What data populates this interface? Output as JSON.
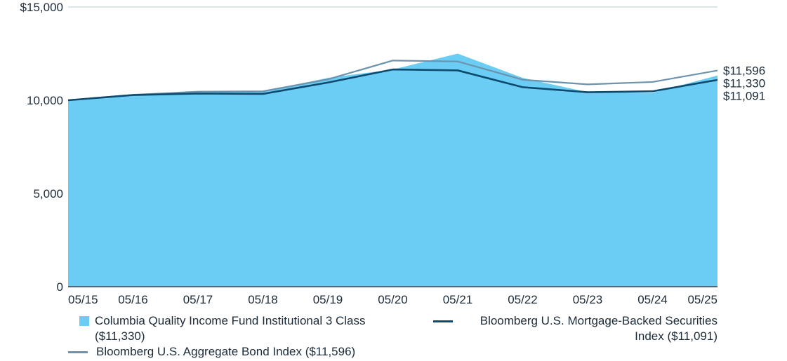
{
  "chart_data": {
    "type": "area",
    "title": "",
    "xlabel": "",
    "ylabel": "",
    "ylim": [
      0,
      15000
    ],
    "yticks": [
      0,
      5000,
      10000,
      15000
    ],
    "ytick_labels": [
      "0",
      "5,000",
      "10,000",
      "$15,000"
    ],
    "categories": [
      "05/15",
      "05/16",
      "05/17",
      "05/18",
      "05/19",
      "05/20",
      "05/21",
      "05/22",
      "05/23",
      "05/24",
      "05/25"
    ],
    "grid": true,
    "series": [
      {
        "name": "Columbia Quality Income Fund Institutional 3 Class ($11,330)",
        "kind": "area",
        "color": "#6bcdf4",
        "end_label": "$11,330",
        "values": [
          10000,
          10280,
          10420,
          10470,
          11200,
          11650,
          12500,
          11200,
          10430,
          10400,
          11330
        ]
      },
      {
        "name": "Bloomberg U.S. Mortgage-Backed Securities Index ($11,091)",
        "kind": "line",
        "color": "#0d4a6e",
        "end_label": "$11,091",
        "values": [
          10000,
          10280,
          10360,
          10340,
          10950,
          11650,
          11600,
          10700,
          10430,
          10480,
          11091
        ]
      },
      {
        "name": "Bloomberg U.S. Aggregate Bond Index ($11,596)",
        "kind": "line",
        "color": "#6b93ad",
        "end_label": "$11,596",
        "values": [
          10000,
          10290,
          10460,
          10480,
          11120,
          12130,
          12080,
          11100,
          10850,
          10980,
          11596
        ]
      }
    ]
  },
  "legend": {
    "fund_label": "Columbia Quality Income Fund Institutional 3 Class ($11,330)",
    "mbs_label": "Bloomberg U.S. Mortgage-Backed Securities Index ($11,091)",
    "agg_label": "Bloomberg U.S. Aggregate Bond Index ($11,596)"
  },
  "colors": {
    "fund": "#6bcdf4",
    "mbs": "#0d4a6e",
    "agg": "#6b93ad",
    "grid": "#bcc8d1",
    "axis": "#1c2b39"
  }
}
